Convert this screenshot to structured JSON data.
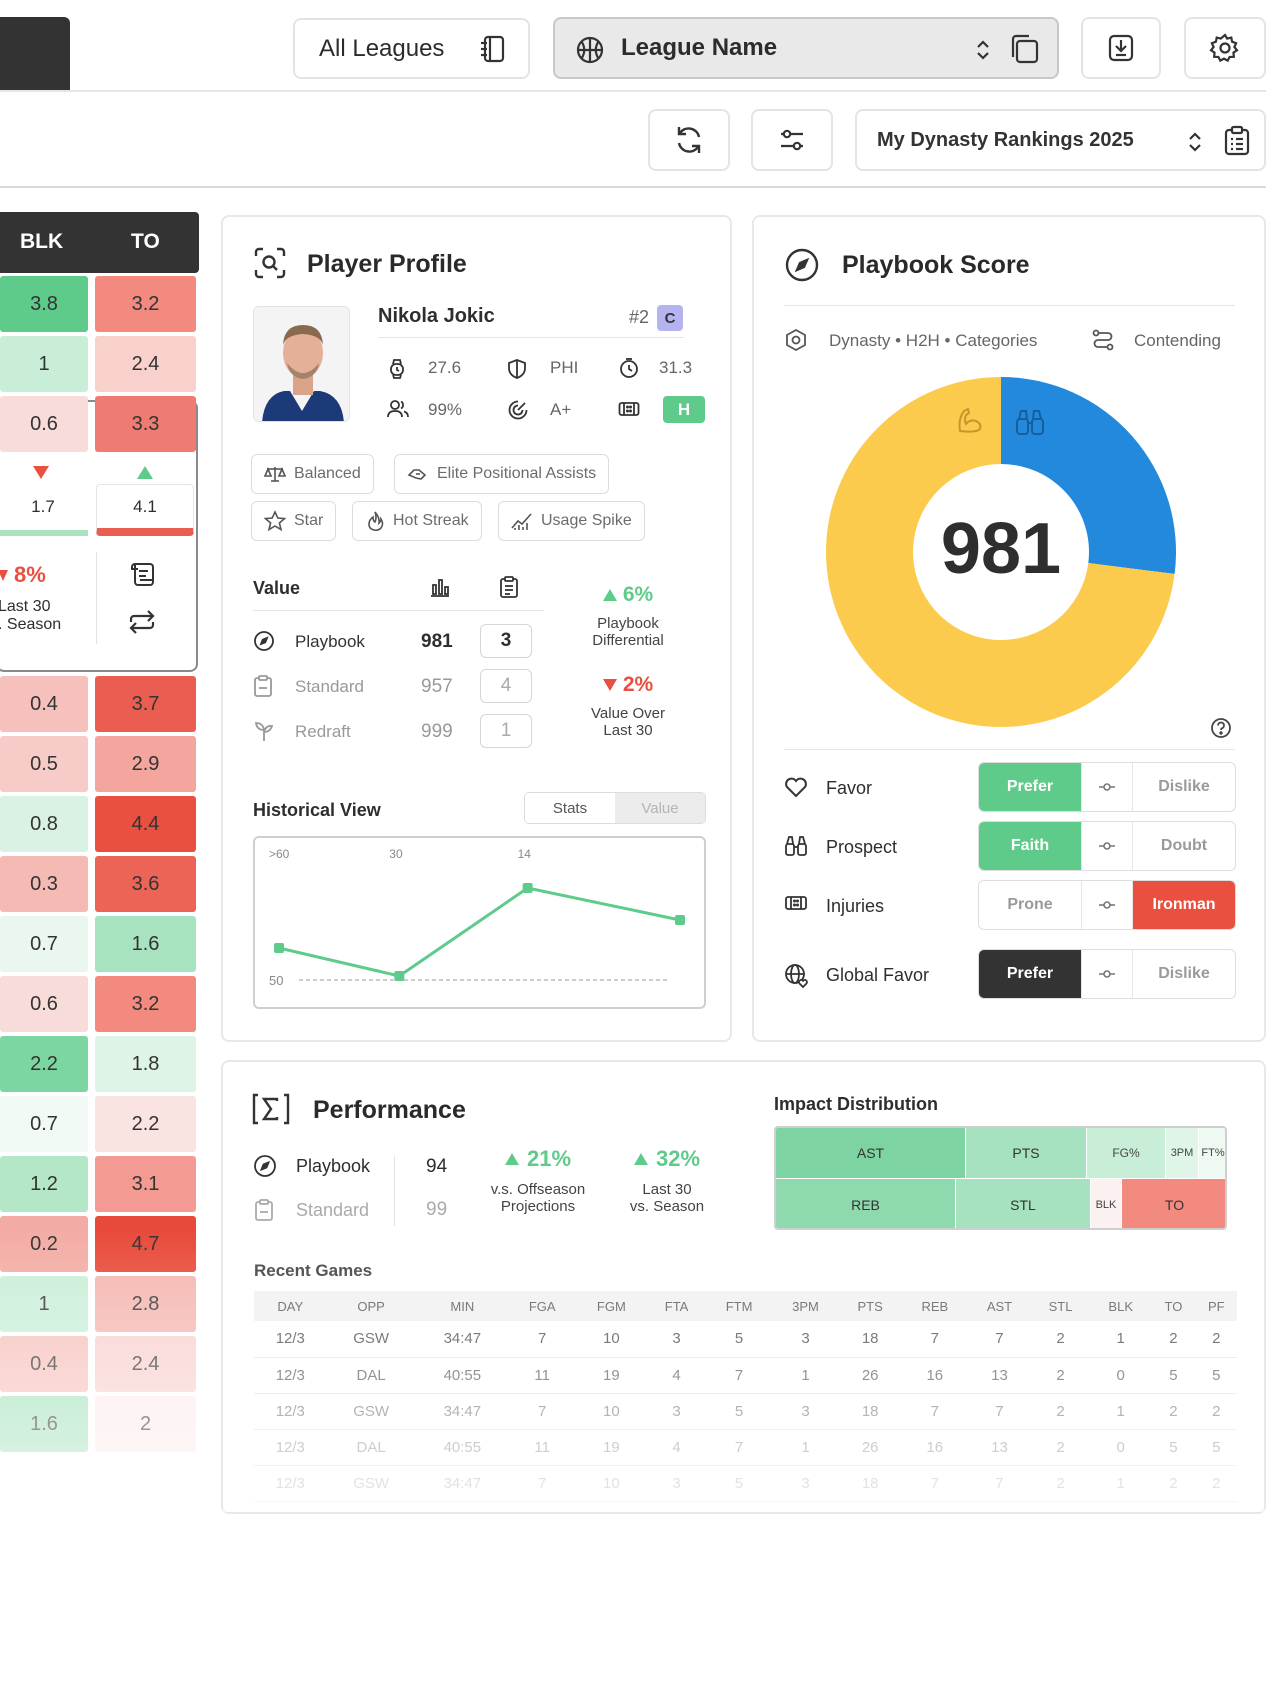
{
  "toolbar": {
    "all_leagues_label": "All Leagues",
    "league_name_label": "League Name",
    "rankings_label": "My Dynasty Rankings 2025"
  },
  "stat_grid": {
    "headers": [
      "BLK",
      "TO"
    ],
    "rows": [
      {
        "blk": "3.8",
        "to": "3.2",
        "blk_color": "#5ecb8b",
        "to_color": "#f28a80"
      },
      {
        "blk": "1",
        "to": "2.4",
        "blk_color": "#c9eed7",
        "to_color": "#f8d0cc"
      },
      {
        "blk": "0.6",
        "to": "3.3",
        "blk_color": "#f8dcd9",
        "to_color": "#ee7c72"
      },
      {
        "blk": "0.4",
        "to": "3.7",
        "blk_color": "#f6c1bc",
        "to_color": "#ea5e52"
      },
      {
        "blk": "0.5",
        "to": "2.9",
        "blk_color": "#f7cbc7",
        "to_color": "#f4a59e"
      },
      {
        "blk": "0.8",
        "to": "4.4",
        "blk_color": "#d9f2e3",
        "to_color": "#e9503f"
      },
      {
        "blk": "0.3",
        "to": "3.6",
        "blk_color": "#f5bab4",
        "to_color": "#eb6456"
      },
      {
        "blk": "0.7",
        "to": "1.6",
        "blk_color": "#eaf7ef",
        "to_color": "#a8e3c0"
      },
      {
        "blk": "0.6",
        "to": "3.2",
        "blk_color": "#f8dcd9",
        "to_color": "#f28a80"
      },
      {
        "blk": "2.2",
        "to": "1.8",
        "blk_color": "#7cd6a1",
        "to_color": "#ddf4e6"
      },
      {
        "blk": "0.7",
        "to": "2.2",
        "blk_color": "#f1faf4",
        "to_color": "#fae4e2"
      },
      {
        "blk": "1.2",
        "to": "3.1",
        "blk_color": "#b4e7c8",
        "to_color": "#f39a92"
      },
      {
        "blk": "0.2",
        "to": "4.7",
        "blk_color": "#f3aca5",
        "to_color": "#e84a3a"
      },
      {
        "blk": "1",
        "to": "2.8",
        "blk_color": "#c9eed7",
        "to_color": "#f5b5af"
      },
      {
        "blk": "0.4",
        "to": "2.4",
        "blk_color": "#f6c1bc",
        "to_color": "#f8d0cc"
      },
      {
        "blk": "1.6",
        "to": "2",
        "blk_color": "#a4e1bc",
        "to_color": "#fbecea"
      }
    ],
    "compare_low": "1.7",
    "compare_high": "4.1",
    "change_pct": "8%",
    "change_caption_1": "Last 30",
    "change_caption_2": ". Season"
  },
  "profile": {
    "title": "Player Profile",
    "player_name": "Nikola Jokic",
    "rank": "#2",
    "position": "C",
    "age": "27.6",
    "team": "PHI",
    "minutes": "31.3",
    "owned": "99%",
    "grade": "A+",
    "health": "H",
    "tags": [
      "Balanced",
      "Elite Positional Assists",
      "Star",
      "Hot Streak",
      "Usage Spike"
    ],
    "value_header": "Value",
    "value_rows": [
      {
        "name": "Playbook",
        "score": "981",
        "rank": "3"
      },
      {
        "name": "Standard",
        "score": "957",
        "rank": "4"
      },
      {
        "name": "Redraft",
        "score": "999",
        "rank": "1"
      }
    ],
    "differential_pct": "6%",
    "differential_label_1": "Playbook",
    "differential_label_2": "Differential",
    "vol_pct": "2%",
    "vol_label_1": "Value Over",
    "vol_label_2": "Last 30",
    "historical_title": "Historical View",
    "hist_tabs": [
      "Stats",
      "Value"
    ],
    "hist_x_labels": [
      ">60",
      "30",
      "14"
    ],
    "hist_y_label": "50",
    "hist_values": [
      55,
      48,
      70,
      62
    ]
  },
  "score": {
    "title": "Playbook Score",
    "settings": "Dynasty • H2H • Categories",
    "mode": "Contending",
    "value": "981",
    "donut": [
      {
        "name": "Yellow",
        "value": 73,
        "color": "#fccb4e"
      },
      {
        "name": "Blue",
        "value": 27,
        "color": "#2289dd"
      }
    ],
    "prefs": [
      {
        "label": "Favor",
        "left": "Prefer",
        "right": "Dislike",
        "active": "left",
        "style": "green"
      },
      {
        "label": "Prospect",
        "left": "Faith",
        "right": "Doubt",
        "active": "left",
        "style": "green"
      },
      {
        "label": "Injuries",
        "left": "Prone",
        "right": "Ironman",
        "active": "right",
        "style": "red"
      },
      {
        "label": "Global Favor",
        "left": "Prefer",
        "right": "Dislike",
        "active": "left",
        "style": "dark"
      }
    ]
  },
  "performance": {
    "title": "Performance",
    "rows": [
      {
        "name": "Playbook",
        "value": "94"
      },
      {
        "name": "Standard",
        "value": "99"
      }
    ],
    "stat1_pct": "21%",
    "stat1_label_1": "v.s. Offseason",
    "stat1_label_2": "Projections",
    "stat2_pct": "32%",
    "stat2_label_1": "Last 30",
    "stat2_label_2": "vs. Season",
    "impact_title": "Impact Distribution",
    "impact_top": [
      "AST",
      "PTS",
      "FG%",
      "3PM",
      "FT%"
    ],
    "impact_bottom": [
      "REB",
      "STL",
      "BLK",
      "TO"
    ],
    "recent_title": "Recent Games",
    "columns": [
      "DAY",
      "OPP",
      "MIN",
      "FGA",
      "FGM",
      "FTA",
      "FTM",
      "3PM",
      "PTS",
      "REB",
      "AST",
      "STL",
      "BLK",
      "TO",
      "PF"
    ],
    "games": [
      [
        "12/3",
        "GSW",
        "34:47",
        "7",
        "10",
        "3",
        "5",
        "3",
        "18",
        "7",
        "7",
        "2",
        "1",
        "2",
        "2"
      ],
      [
        "12/3",
        "DAL",
        "40:55",
        "11",
        "19",
        "4",
        "7",
        "1",
        "26",
        "16",
        "13",
        "2",
        "0",
        "5",
        "5"
      ],
      [
        "12/3",
        "GSW",
        "34:47",
        "7",
        "10",
        "3",
        "5",
        "3",
        "18",
        "7",
        "7",
        "2",
        "1",
        "2",
        "2"
      ],
      [
        "12/3",
        "DAL",
        "40:55",
        "11",
        "19",
        "4",
        "7",
        "1",
        "26",
        "16",
        "13",
        "2",
        "0",
        "5",
        "5"
      ],
      [
        "12/3",
        "GSW",
        "34:47",
        "7",
        "10",
        "3",
        "5",
        "3",
        "18",
        "7",
        "7",
        "2",
        "1",
        "2",
        "2"
      ]
    ]
  }
}
